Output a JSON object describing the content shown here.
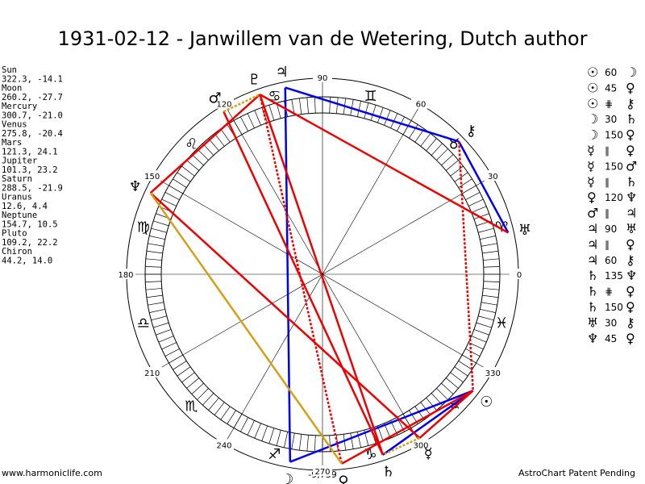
{
  "title": "1931-02-12 - Janwillem van de Wetering, Dutch author",
  "planets": [
    {
      "glyph": "☉",
      "name": "Sun",
      "position": "322.3, -14.1"
    },
    {
      "glyph": "☽",
      "name": "Moon",
      "position": "260.2, -27.7"
    },
    {
      "glyph": "☿",
      "name": "Mercury",
      "position": "300.7, -21.0"
    },
    {
      "glyph": "♀",
      "name": "Venus",
      "position": "275.8, -20.4"
    },
    {
      "glyph": "♂",
      "name": "Mars",
      "position": "121.3, 24.1"
    },
    {
      "glyph": "♃",
      "name": "Jupiter",
      "position": "101.3, 23.2"
    },
    {
      "glyph": "♄",
      "name": "Saturn",
      "position": "288.5, -21.9"
    },
    {
      "glyph": "♅",
      "name": "Uranus",
      "position": "12.6, 4.4"
    },
    {
      "glyph": "♆",
      "name": "Neptune",
      "position": "154.7, 10.5"
    },
    {
      "glyph": "♇",
      "name": "Pluto",
      "position": "109.2, 22.2"
    },
    {
      "glyph": "⚷",
      "name": "Chiron",
      "position": "44.2, 14.0"
    }
  ],
  "aspects": [
    {
      "from": "☉",
      "aspect": "60",
      "to": "☽"
    },
    {
      "from": "☉",
      "aspect": "45",
      "to": "♀"
    },
    {
      "from": "☉",
      "aspect": "⋕",
      "to": "⚷"
    },
    {
      "from": "☽",
      "aspect": "30",
      "to": "♄"
    },
    {
      "from": "☽",
      "aspect": "150",
      "to": "♀"
    },
    {
      "from": "☿",
      "aspect": "∥",
      "to": "♀"
    },
    {
      "from": "☿",
      "aspect": "150",
      "to": "♂"
    },
    {
      "from": "☿",
      "aspect": "∥",
      "to": "♄"
    },
    {
      "from": "♀",
      "aspect": "120",
      "to": "♆"
    },
    {
      "from": "♂",
      "aspect": "∥",
      "to": "♃"
    },
    {
      "from": "♃",
      "aspect": "90",
      "to": "♅"
    },
    {
      "from": "♃",
      "aspect": "∥",
      "to": "♀"
    },
    {
      "from": "♃",
      "aspect": "60",
      "to": "⚷"
    },
    {
      "from": "♄",
      "aspect": "135",
      "to": "♆"
    },
    {
      "from": "♄",
      "aspect": "⋕",
      "to": "♀"
    },
    {
      "from": "♄",
      "aspect": "150",
      "to": "♀"
    },
    {
      "from": "♅",
      "aspect": "30",
      "to": "⚷"
    },
    {
      "from": "♆",
      "aspect": "45",
      "to": "♀"
    }
  ],
  "wheel": {
    "degree_labels": [
      0,
      30,
      60,
      90,
      120,
      150,
      180,
      210,
      240,
      270,
      300,
      330
    ],
    "signs": [
      "♈",
      "♉",
      "♊",
      "♋",
      "♌",
      "♍",
      "♎",
      "♏",
      "♐",
      "♑",
      "♒",
      "♓"
    ],
    "bottom_value": "-9,739"
  },
  "footer": {
    "left": "www.harmoniclife.com",
    "right": "AstroChart Patent Pending"
  }
}
